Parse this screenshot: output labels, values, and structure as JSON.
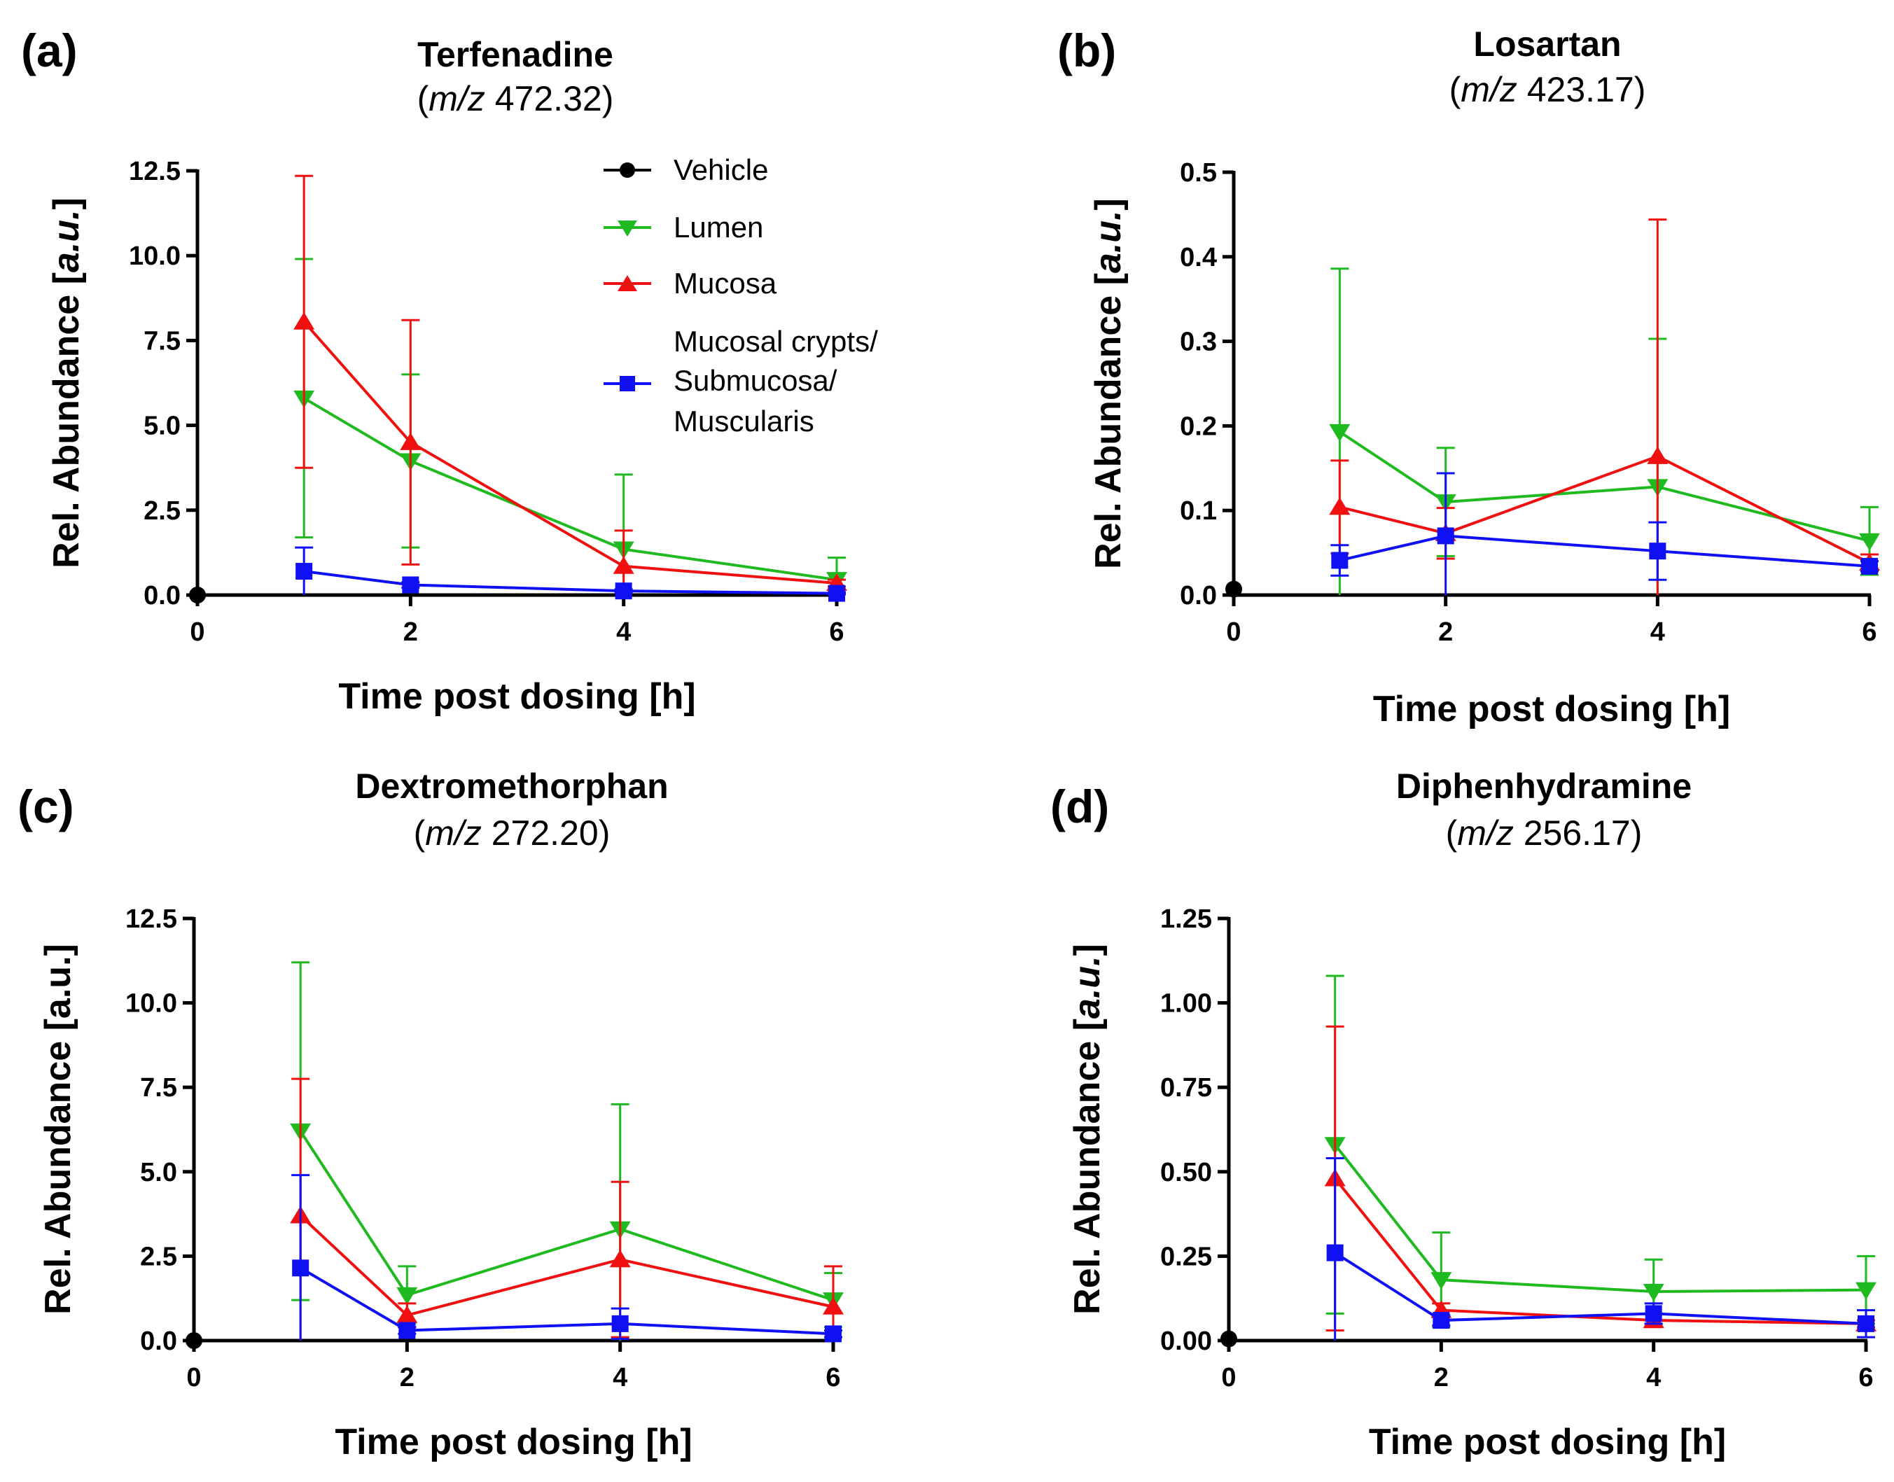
{
  "colors": {
    "vehicle": "#000000",
    "lumen": "#1fba1f",
    "mucosa": "#f01010",
    "crypts": "#1010f5"
  },
  "legend": {
    "vehicle": "Vehicle",
    "lumen": "Lumen",
    "mucosa": "Mucosa",
    "crypts_line1": "Mucosal crypts/",
    "crypts_line2": "Submucosa/",
    "crypts_line3": "Muscularis"
  },
  "panels": [
    {
      "label": "(a)",
      "title": "Terfenadine",
      "mz_prefix": "m/z",
      "mz_value": "472.32"
    },
    {
      "label": "(b)",
      "title": "Losartan",
      "mz_prefix": "m/z",
      "mz_value": "423.17"
    },
    {
      "label": "(c)",
      "title": "Dextromethorphan",
      "mz_prefix": "m/z",
      "mz_value": "272.20"
    },
    {
      "label": "(d)",
      "title": "Diphenhydramine",
      "mz_prefix": "m/z",
      "mz_value": "256.17"
    }
  ],
  "chart_data": [
    {
      "type": "line",
      "title": "Terfenadine (m/z 472.32)",
      "xlabel": "Time post dosing [h]",
      "ylabel_prefix": "Rel. Abundance [",
      "ylabel_unit": "a.u.",
      "ylabel_suffix": "]",
      "ylabel_italic_unit": true,
      "xlim": [
        0,
        6
      ],
      "ylim": [
        0,
        12.5
      ],
      "xticks": [
        "0",
        "2",
        "4",
        "6"
      ],
      "xtick_values": [
        0,
        2,
        4,
        6
      ],
      "yticks": [
        "0.0",
        "2.5",
        "5.0",
        "7.5",
        "10.0",
        "12.5"
      ],
      "ytick_values": [
        0,
        2.5,
        5,
        7.5,
        10,
        12.5
      ],
      "series": [
        {
          "name": "Vehicle",
          "key": "vehicle",
          "marker": "circle",
          "x": [
            0
          ],
          "y": [
            0
          ],
          "err": [
            0
          ]
        },
        {
          "name": "Lumen",
          "key": "lumen",
          "marker": "triangle-down",
          "x": [
            1,
            2,
            4,
            6
          ],
          "y": [
            5.8,
            3.95,
            1.35,
            0.45
          ],
          "err": [
            4.1,
            2.55,
            2.2,
            0.65
          ]
        },
        {
          "name": "Mucosa",
          "key": "mucosa",
          "marker": "triangle-up",
          "x": [
            1,
            2,
            4,
            6
          ],
          "y": [
            8.05,
            4.5,
            0.85,
            0.35
          ],
          "err": [
            4.3,
            3.6,
            1.05,
            0.1
          ]
        },
        {
          "name": "Mucosal crypts/ Submucosa/ Muscularis",
          "key": "crypts",
          "marker": "square",
          "x": [
            1,
            2,
            4,
            6
          ],
          "y": [
            0.7,
            0.3,
            0.12,
            0.05
          ],
          "err": [
            0.7,
            0.08,
            0.05,
            0.03
          ]
        }
      ]
    },
    {
      "type": "line",
      "title": "Losartan (m/z 423.17)",
      "xlabel": "Time post dosing [h]",
      "ylabel_prefix": "Rel. Abundance [",
      "ylabel_unit": "a.u.",
      "ylabel_suffix": "]",
      "ylabel_italic_unit": true,
      "xlim": [
        0,
        6
      ],
      "ylim": [
        0,
        0.5
      ],
      "xticks": [
        "0",
        "2",
        "4",
        "6"
      ],
      "xtick_values": [
        0,
        2,
        4,
        6
      ],
      "yticks": [
        "0.0",
        "0.1",
        "0.2",
        "0.3",
        "0.4",
        "0.5"
      ],
      "ytick_values": [
        0,
        0.1,
        0.2,
        0.3,
        0.4,
        0.5
      ],
      "series": [
        {
          "name": "Vehicle",
          "key": "vehicle",
          "marker": "circle",
          "x": [
            0
          ],
          "y": [
            0.007
          ],
          "err": [
            0
          ]
        },
        {
          "name": "Lumen",
          "key": "lumen",
          "marker": "triangle-down",
          "x": [
            1,
            2,
            4,
            6
          ],
          "y": [
            0.193,
            0.11,
            0.128,
            0.064
          ],
          "err": [
            0.193,
            0.064,
            0.175,
            0.04
          ]
        },
        {
          "name": "Mucosa",
          "key": "mucosa",
          "marker": "triangle-up",
          "x": [
            1,
            2,
            4,
            6
          ],
          "y": [
            0.104,
            0.073,
            0.164,
            0.038
          ],
          "err": [
            0.055,
            0.03,
            0.28,
            0.01
          ]
        },
        {
          "name": "Mucosal crypts/ Submucosa/ Muscularis",
          "key": "crypts",
          "marker": "square",
          "x": [
            1,
            2,
            4,
            6
          ],
          "y": [
            0.041,
            0.07,
            0.052,
            0.034
          ],
          "err": [
            0.018,
            0.074,
            0.034,
            0.006
          ]
        }
      ]
    },
    {
      "type": "line",
      "title": "Dextromethorphan (m/z 272.20)",
      "xlabel": "Time post dosing [h]",
      "ylabel_prefix": "Rel. Abundance [",
      "ylabel_unit": "a.u.",
      "ylabel_suffix": "]",
      "ylabel_italic_unit": false,
      "xlim": [
        0,
        6
      ],
      "ylim": [
        0,
        12.5
      ],
      "xticks": [
        "0",
        "2",
        "4",
        "6"
      ],
      "xtick_values": [
        0,
        2,
        4,
        6
      ],
      "yticks": [
        "0.0",
        "2.5",
        "5.0",
        "7.5",
        "10.0",
        "12.5"
      ],
      "ytick_values": [
        0,
        2.5,
        5,
        7.5,
        10,
        12.5
      ],
      "series": [
        {
          "name": "Vehicle",
          "key": "vehicle",
          "marker": "circle",
          "x": [
            0
          ],
          "y": [
            0
          ],
          "err": [
            0
          ]
        },
        {
          "name": "Lumen",
          "key": "lumen",
          "marker": "triangle-down",
          "x": [
            1,
            2,
            4,
            6
          ],
          "y": [
            6.2,
            1.35,
            3.3,
            1.2
          ],
          "err": [
            5.0,
            0.85,
            3.7,
            0.8
          ]
        },
        {
          "name": "Mucosa",
          "key": "mucosa",
          "marker": "triangle-up",
          "x": [
            1,
            2,
            4,
            6
          ],
          "y": [
            3.7,
            0.75,
            2.4,
            1.0
          ],
          "err": [
            4.05,
            0.35,
            2.3,
            1.2
          ]
        },
        {
          "name": "Mucosal crypts/ Submucosa/ Muscularis",
          "key": "crypts",
          "marker": "square",
          "x": [
            1,
            2,
            4,
            6
          ],
          "y": [
            2.15,
            0.3,
            0.5,
            0.2
          ],
          "err": [
            2.75,
            0.1,
            0.45,
            0.1
          ]
        }
      ]
    },
    {
      "type": "line",
      "title": "Diphenhydramine (m/z 256.17)",
      "xlabel": "Time post dosing [h]",
      "ylabel_prefix": "Rel. Abundance [",
      "ylabel_unit": "a.u.",
      "ylabel_suffix": "]",
      "ylabel_italic_unit": true,
      "xlim": [
        0,
        6
      ],
      "ylim": [
        0,
        1.25
      ],
      "xticks": [
        "0",
        "2",
        "4",
        "6"
      ],
      "xtick_values": [
        0,
        2,
        4,
        6
      ],
      "yticks": [
        "0.00",
        "0.25",
        "0.50",
        "0.75",
        "1.00",
        "1.25"
      ],
      "ytick_values": [
        0,
        0.25,
        0.5,
        0.75,
        1.0,
        1.25
      ],
      "series": [
        {
          "name": "Vehicle",
          "key": "vehicle",
          "marker": "circle",
          "x": [
            0
          ],
          "y": [
            0.005
          ],
          "err": [
            0
          ]
        },
        {
          "name": "Lumen",
          "key": "lumen",
          "marker": "triangle-down",
          "x": [
            1,
            2,
            4,
            6
          ],
          "y": [
            0.58,
            0.18,
            0.145,
            0.15
          ],
          "err": [
            0.5,
            0.14,
            0.095,
            0.1
          ]
        },
        {
          "name": "Mucosa",
          "key": "mucosa",
          "marker": "triangle-up",
          "x": [
            1,
            2,
            4,
            6
          ],
          "y": [
            0.48,
            0.09,
            0.06,
            0.05
          ],
          "err": [
            0.45,
            0.02,
            0.02,
            0.01
          ]
        },
        {
          "name": "Mucosal crypts/ Submucosa/ Muscularis",
          "key": "crypts",
          "marker": "square",
          "x": [
            1,
            2,
            4,
            6
          ],
          "y": [
            0.26,
            0.06,
            0.08,
            0.05
          ],
          "err": [
            0.28,
            0.015,
            0.03,
            0.04
          ]
        }
      ]
    }
  ]
}
